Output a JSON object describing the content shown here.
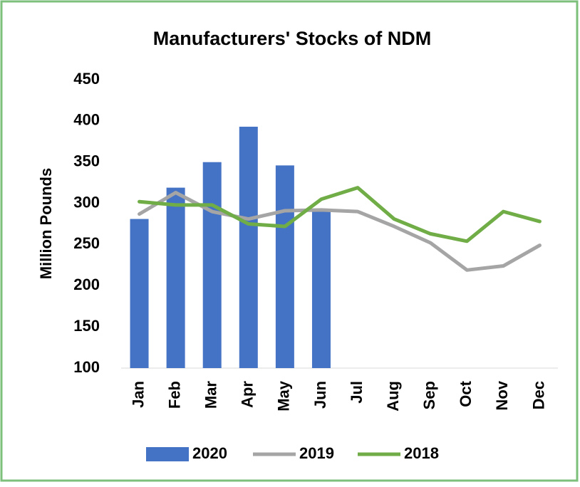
{
  "chart_data": {
    "type": "bar",
    "title": "Manufacturers' Stocks of NDM",
    "y_label": "Million Pounds",
    "categories": [
      "Jan",
      "Feb",
      "Mar",
      "Apr",
      "May",
      "Jun",
      "Jul",
      "Aug",
      "Sep",
      "Oct",
      "Nov",
      "Dec"
    ],
    "series": [
      {
        "name": "2020",
        "type": "bar",
        "color": "#4472c4",
        "values": [
          281,
          319,
          350,
          393,
          346,
          292,
          null,
          null,
          null,
          null,
          null,
          null
        ]
      },
      {
        "name": "2019",
        "type": "line",
        "color": "#a5a5a5",
        "values": [
          287,
          313,
          290,
          281,
          291,
          292,
          290,
          272,
          252,
          219,
          224,
          249
        ]
      },
      {
        "name": "2018",
        "type": "line",
        "color": "#70ad47",
        "values": [
          302,
          298,
          298,
          275,
          272,
          305,
          319,
          281,
          263,
          254,
          290,
          278
        ]
      }
    ],
    "ylim": [
      100,
      450
    ],
    "yticks": [
      100,
      150,
      200,
      250,
      300,
      350,
      400,
      450
    ],
    "legend": "bottom"
  }
}
